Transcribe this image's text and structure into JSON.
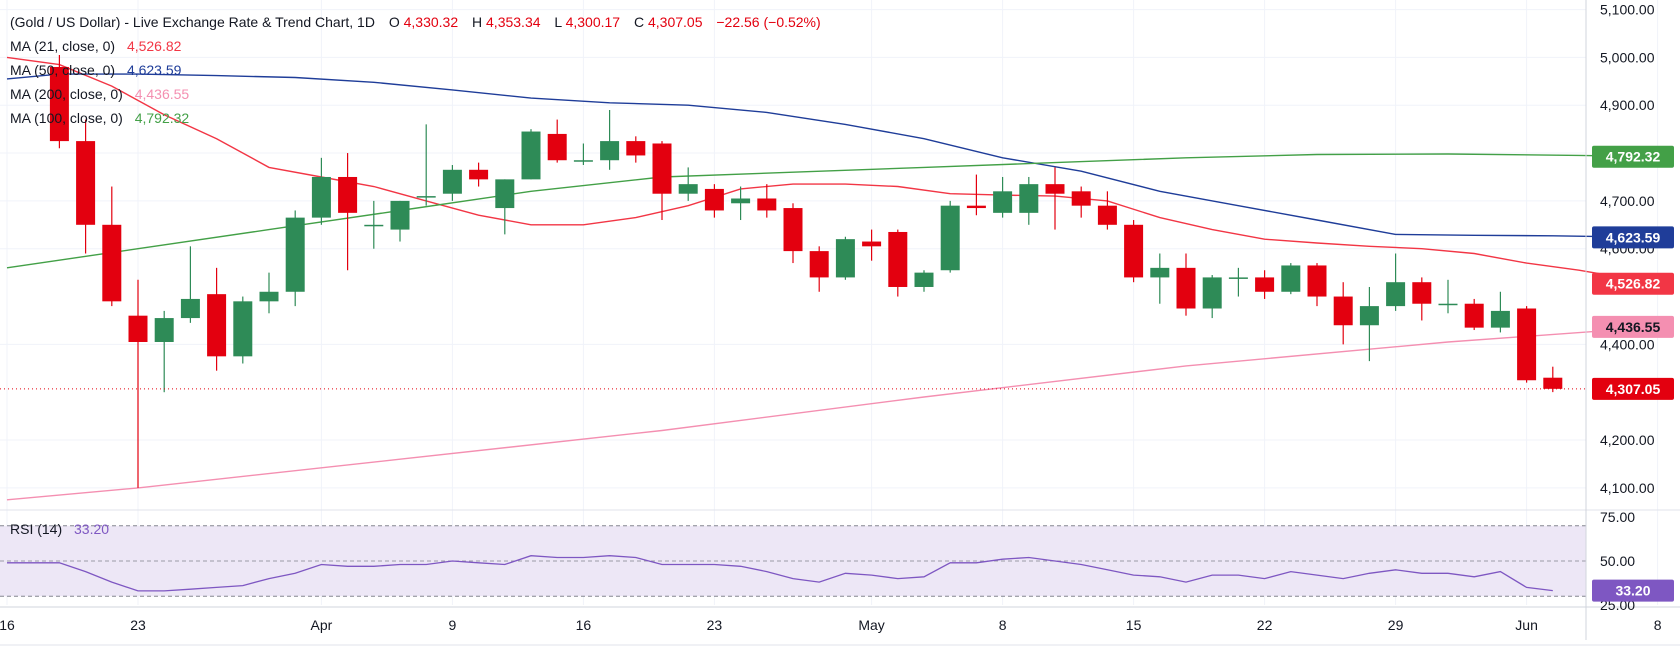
{
  "header": {
    "title": "(Gold / US Dollar) - Live Exchange Rate & Trend Chart, 1D",
    "o_label": "O",
    "o_value": "4,330.32",
    "h_label": "H",
    "h_value": "4,353.34",
    "l_label": "L",
    "l_value": "4,300.17",
    "c_label": "C",
    "c_value": "4,307.05",
    "change": "−22.56 (−0.52%)"
  },
  "legend": [
    {
      "label": "MA (21, close, 0)",
      "value": "4,526.82",
      "color": "#f23645"
    },
    {
      "label": "MA (50, close, 0)",
      "value": "4,623.59",
      "color": "#1f3d99"
    },
    {
      "label": "MA (200, close, 0)",
      "value": "4,436.55",
      "color": "#f48fb1"
    },
    {
      "label": "MA (100, close, 0)",
      "value": "4,792.32",
      "color": "#43a047"
    }
  ],
  "rsi_legend": {
    "label": "RSI (14)",
    "value": "33.20",
    "color": "#7e57c2"
  },
  "price_tags": [
    {
      "name": "ma100",
      "text": "4,792.32",
      "value": 4792.32,
      "bg": "#43a047",
      "fg": "#ffffff"
    },
    {
      "name": "ma50",
      "text": "4,623.59",
      "value": 4623.59,
      "bg": "#1f3d99",
      "fg": "#ffffff"
    },
    {
      "name": "ma21",
      "text": "4,526.82",
      "value": 4526.82,
      "bg": "#f23645",
      "fg": "#ffffff"
    },
    {
      "name": "ma200",
      "text": "4,436.55",
      "value": 4436.55,
      "bg": "#f48fb1",
      "fg": "#131722"
    },
    {
      "name": "last",
      "text": "4,307.05",
      "value": 4307.05,
      "bg": "#e3000f",
      "fg": "#ffffff"
    }
  ],
  "rsi_tag": {
    "text": "33.20",
    "value": 33.2,
    "bg": "#7e57c2",
    "fg": "#ffffff"
  },
  "colors": {
    "up": "#2e8b57",
    "down": "#e3000f",
    "rsi": "#7e57c2",
    "rsi_band": "#ede7f6"
  },
  "chart_data": {
    "type": "candlestick",
    "price_axis": {
      "range": [
        4060,
        5120
      ],
      "ticks": [
        {
          "value": 4100,
          "label": "4,100.00"
        },
        {
          "value": 4200,
          "label": "4,200.00"
        },
        {
          "value": 4400,
          "label": "4,400.00"
        },
        {
          "value": 4600,
          "label": "4,600.00"
        },
        {
          "value": 4700,
          "label": "4,700.00"
        },
        {
          "value": 4800,
          "label": "4,800.00"
        },
        {
          "value": 4900,
          "label": "4,900.00"
        },
        {
          "value": 5000,
          "label": "5,000.00"
        },
        {
          "value": 5100,
          "label": "5,100.00"
        }
      ]
    },
    "time_axis": {
      "labels": [
        {
          "i": -5,
          "label": "16"
        },
        {
          "i": 0,
          "label": "23"
        },
        {
          "i": 7,
          "label": "Apr"
        },
        {
          "i": 12,
          "label": "9"
        },
        {
          "i": 17,
          "label": "16"
        },
        {
          "i": 22,
          "label": "23"
        },
        {
          "i": 28,
          "label": "May"
        },
        {
          "i": 33,
          "label": "8"
        },
        {
          "i": 38,
          "label": "15"
        },
        {
          "i": 43,
          "label": "22"
        },
        {
          "i": 48,
          "label": "29"
        },
        {
          "i": 53,
          "label": "Jun"
        },
        {
          "i": 58,
          "label": "8"
        }
      ]
    },
    "candles": [
      {
        "i": -3,
        "o": 4980,
        "h": 5005,
        "l": 4810,
        "c": 4825
      },
      {
        "i": -2,
        "o": 4825,
        "h": 4870,
        "l": 4590,
        "c": 4650
      },
      {
        "i": -1,
        "o": 4650,
        "h": 4730,
        "l": 4480,
        "c": 4490
      },
      {
        "i": 0,
        "o": 4460,
        "h": 4535,
        "l": 4100,
        "c": 4405
      },
      {
        "i": 1,
        "o": 4405,
        "h": 4470,
        "l": 4300,
        "c": 4455
      },
      {
        "i": 2,
        "o": 4455,
        "h": 4605,
        "l": 4445,
        "c": 4495
      },
      {
        "i": 3,
        "o": 4505,
        "h": 4560,
        "l": 4345,
        "c": 4375
      },
      {
        "i": 4,
        "o": 4375,
        "h": 4500,
        "l": 4360,
        "c": 4490
      },
      {
        "i": 5,
        "o": 4490,
        "h": 4550,
        "l": 4465,
        "c": 4510
      },
      {
        "i": 6,
        "o": 4510,
        "h": 4680,
        "l": 4480,
        "c": 4665
      },
      {
        "i": 7,
        "o": 4665,
        "h": 4790,
        "l": 4650,
        "c": 4750
      },
      {
        "i": 8,
        "o": 4750,
        "h": 4800,
        "l": 4555,
        "c": 4675
      },
      {
        "i": 9,
        "o": 4650,
        "h": 4700,
        "l": 4600,
        "c": 4650
      },
      {
        "i": 10,
        "o": 4640,
        "h": 4700,
        "l": 4615,
        "c": 4700
      },
      {
        "i": 11,
        "o": 4710,
        "h": 4860,
        "l": 4690,
        "c": 4710
      },
      {
        "i": 12,
        "o": 4715,
        "h": 4775,
        "l": 4700,
        "c": 4765
      },
      {
        "i": 13,
        "o": 4765,
        "h": 4780,
        "l": 4730,
        "c": 4745
      },
      {
        "i": 14,
        "o": 4685,
        "h": 4745,
        "l": 4630,
        "c": 4745
      },
      {
        "i": 15,
        "o": 4745,
        "h": 4850,
        "l": 4745,
        "c": 4845
      },
      {
        "i": 16,
        "o": 4840,
        "h": 4870,
        "l": 4780,
        "c": 4785
      },
      {
        "i": 17,
        "o": 4785,
        "h": 4820,
        "l": 4775,
        "c": 4785
      },
      {
        "i": 18,
        "o": 4785,
        "h": 4890,
        "l": 4765,
        "c": 4825
      },
      {
        "i": 19,
        "o": 4825,
        "h": 4835,
        "l": 4780,
        "c": 4795
      },
      {
        "i": 20,
        "o": 4820,
        "h": 4825,
        "l": 4660,
        "c": 4715
      },
      {
        "i": 21,
        "o": 4715,
        "h": 4770,
        "l": 4700,
        "c": 4735
      },
      {
        "i": 22,
        "o": 4725,
        "h": 4735,
        "l": 4665,
        "c": 4680
      },
      {
        "i": 23,
        "o": 4695,
        "h": 4730,
        "l": 4660,
        "c": 4705
      },
      {
        "i": 24,
        "o": 4705,
        "h": 4735,
        "l": 4665,
        "c": 4680
      },
      {
        "i": 25,
        "o": 4685,
        "h": 4695,
        "l": 4570,
        "c": 4595
      },
      {
        "i": 26,
        "o": 4595,
        "h": 4605,
        "l": 4510,
        "c": 4540
      },
      {
        "i": 27,
        "o": 4540,
        "h": 4625,
        "l": 4535,
        "c": 4620
      },
      {
        "i": 28,
        "o": 4615,
        "h": 4640,
        "l": 4575,
        "c": 4605
      },
      {
        "i": 29,
        "o": 4635,
        "h": 4640,
        "l": 4500,
        "c": 4520
      },
      {
        "i": 30,
        "o": 4520,
        "h": 4555,
        "l": 4510,
        "c": 4550
      },
      {
        "i": 31,
        "o": 4555,
        "h": 4700,
        "l": 4550,
        "c": 4690
      },
      {
        "i": 32,
        "o": 4690,
        "h": 4755,
        "l": 4670,
        "c": 4685
      },
      {
        "i": 33,
        "o": 4675,
        "h": 4750,
        "l": 4665,
        "c": 4720
      },
      {
        "i": 34,
        "o": 4675,
        "h": 4750,
        "l": 4650,
        "c": 4735
      },
      {
        "i": 35,
        "o": 4735,
        "h": 4770,
        "l": 4640,
        "c": 4715
      },
      {
        "i": 36,
        "o": 4720,
        "h": 4730,
        "l": 4665,
        "c": 4690
      },
      {
        "i": 37,
        "o": 4690,
        "h": 4720,
        "l": 4640,
        "c": 4650
      },
      {
        "i": 38,
        "o": 4650,
        "h": 4660,
        "l": 4530,
        "c": 4540
      },
      {
        "i": 39,
        "o": 4540,
        "h": 4590,
        "l": 4485,
        "c": 4560
      },
      {
        "i": 40,
        "o": 4560,
        "h": 4590,
        "l": 4460,
        "c": 4475
      },
      {
        "i": 41,
        "o": 4475,
        "h": 4545,
        "l": 4455,
        "c": 4540
      },
      {
        "i": 42,
        "o": 4540,
        "h": 4560,
        "l": 4500,
        "c": 4540
      },
      {
        "i": 43,
        "o": 4540,
        "h": 4555,
        "l": 4495,
        "c": 4510
      },
      {
        "i": 44,
        "o": 4510,
        "h": 4570,
        "l": 4505,
        "c": 4565
      },
      {
        "i": 45,
        "o": 4565,
        "h": 4570,
        "l": 4480,
        "c": 4500
      },
      {
        "i": 46,
        "o": 4500,
        "h": 4530,
        "l": 4400,
        "c": 4440
      },
      {
        "i": 47,
        "o": 4440,
        "h": 4520,
        "l": 4365,
        "c": 4480
      },
      {
        "i": 48,
        "o": 4480,
        "h": 4590,
        "l": 4470,
        "c": 4530
      },
      {
        "i": 49,
        "o": 4530,
        "h": 4540,
        "l": 4450,
        "c": 4485
      },
      {
        "i": 50,
        "o": 4485,
        "h": 4535,
        "l": 4465,
        "c": 4485
      },
      {
        "i": 51,
        "o": 4485,
        "h": 4495,
        "l": 4430,
        "c": 4435
      },
      {
        "i": 52,
        "o": 4435,
        "h": 4510,
        "l": 4425,
        "c": 4470
      },
      {
        "i": 53,
        "o": 4475,
        "h": 4480,
        "l": 4320,
        "c": 4325
      },
      {
        "i": 54,
        "o": 4330.32,
        "h": 4353.34,
        "l": 4300.17,
        "c": 4307.05
      }
    ],
    "moving_averages": [
      {
        "name": "MA (21, close, 0)",
        "color": "#f23645",
        "points": [
          [
            -5,
            5000
          ],
          [
            -3,
            4985
          ],
          [
            -1,
            4940
          ],
          [
            1,
            4880
          ],
          [
            3,
            4830
          ],
          [
            5,
            4770
          ],
          [
            7,
            4750
          ],
          [
            9,
            4730
          ],
          [
            11,
            4700
          ],
          [
            13,
            4670
          ],
          [
            15,
            4650
          ],
          [
            17,
            4650
          ],
          [
            19,
            4665
          ],
          [
            21,
            4690
          ],
          [
            23,
            4725
          ],
          [
            25,
            4735
          ],
          [
            27,
            4735
          ],
          [
            29,
            4730
          ],
          [
            31,
            4715
          ],
          [
            33,
            4712
          ],
          [
            35,
            4710
          ],
          [
            37,
            4700
          ],
          [
            39,
            4665
          ],
          [
            41,
            4640
          ],
          [
            43,
            4620
          ],
          [
            45,
            4612
          ],
          [
            47,
            4605
          ],
          [
            49,
            4600
          ],
          [
            51,
            4590
          ],
          [
            53,
            4570
          ],
          [
            55,
            4555
          ],
          [
            58,
            4526.82
          ]
        ]
      },
      {
        "name": "MA (50, close, 0)",
        "color": "#1f3d99",
        "points": [
          [
            -5,
            4955
          ],
          [
            -3,
            4965
          ],
          [
            0,
            4965
          ],
          [
            3,
            4962
          ],
          [
            6,
            4958
          ],
          [
            9,
            4948
          ],
          [
            12,
            4932
          ],
          [
            15,
            4915
          ],
          [
            18,
            4905
          ],
          [
            21,
            4900
          ],
          [
            24,
            4885
          ],
          [
            27,
            4860
          ],
          [
            30,
            4830
          ],
          [
            33,
            4790
          ],
          [
            36,
            4762
          ],
          [
            39,
            4720
          ],
          [
            42,
            4690
          ],
          [
            45,
            4660
          ],
          [
            48,
            4630
          ],
          [
            51,
            4628
          ],
          [
            54,
            4627
          ],
          [
            58,
            4623.59
          ]
        ]
      },
      {
        "name": "MA (200, close, 0)",
        "color": "#f48fb1",
        "points": [
          [
            -5,
            4075
          ],
          [
            0,
            4100
          ],
          [
            10,
            4160
          ],
          [
            20,
            4220
          ],
          [
            30,
            4290
          ],
          [
            40,
            4355
          ],
          [
            50,
            4405
          ],
          [
            58,
            4436.55
          ]
        ]
      },
      {
        "name": "MA (100, close, 0)",
        "color": "#43a047",
        "points": [
          [
            -5,
            4560
          ],
          [
            0,
            4600
          ],
          [
            5,
            4640
          ],
          [
            10,
            4680
          ],
          [
            15,
            4720
          ],
          [
            20,
            4750
          ],
          [
            25,
            4760
          ],
          [
            30,
            4770
          ],
          [
            35,
            4780
          ],
          [
            40,
            4790
          ],
          [
            45,
            4797
          ],
          [
            50,
            4798
          ],
          [
            55,
            4795
          ],
          [
            58,
            4792.32
          ]
        ]
      }
    ],
    "rsi": {
      "name": "RSI (14)",
      "range": [
        25,
        75
      ],
      "ticks": [
        {
          "value": 75,
          "label": "75.00"
        },
        {
          "value": 50,
          "label": "50.00"
        },
        {
          "value": 25,
          "label": "25.00"
        }
      ],
      "band": [
        30,
        70
      ],
      "midline": 50,
      "points": [
        [
          -5,
          49
        ],
        [
          -4,
          49
        ],
        [
          -3,
          49
        ],
        [
          -2,
          44
        ],
        [
          -1,
          38
        ],
        [
          0,
          33
        ],
        [
          1,
          33
        ],
        [
          2,
          34
        ],
        [
          3,
          35
        ],
        [
          4,
          36
        ],
        [
          5,
          40
        ],
        [
          6,
          43
        ],
        [
          7,
          48
        ],
        [
          8,
          47
        ],
        [
          9,
          47
        ],
        [
          10,
          48
        ],
        [
          11,
          48
        ],
        [
          12,
          50
        ],
        [
          13,
          49
        ],
        [
          14,
          48
        ],
        [
          15,
          53
        ],
        [
          16,
          52
        ],
        [
          17,
          52
        ],
        [
          18,
          53
        ],
        [
          19,
          52
        ],
        [
          20,
          48
        ],
        [
          21,
          48
        ],
        [
          22,
          48
        ],
        [
          23,
          47
        ],
        [
          24,
          44
        ],
        [
          25,
          40
        ],
        [
          26,
          38
        ],
        [
          27,
          43
        ],
        [
          28,
          42
        ],
        [
          29,
          40
        ],
        [
          30,
          41
        ],
        [
          31,
          49
        ],
        [
          32,
          49
        ],
        [
          33,
          51
        ],
        [
          34,
          52
        ],
        [
          35,
          50
        ],
        [
          36,
          48
        ],
        [
          37,
          45
        ],
        [
          38,
          42
        ],
        [
          39,
          41
        ],
        [
          40,
          38
        ],
        [
          41,
          42
        ],
        [
          42,
          42
        ],
        [
          43,
          40
        ],
        [
          44,
          44
        ],
        [
          45,
          42
        ],
        [
          46,
          40
        ],
        [
          47,
          43
        ],
        [
          48,
          45
        ],
        [
          49,
          43
        ],
        [
          50,
          43
        ],
        [
          51,
          41
        ],
        [
          52,
          44
        ],
        [
          53,
          35
        ],
        [
          54,
          33.2
        ]
      ]
    }
  }
}
